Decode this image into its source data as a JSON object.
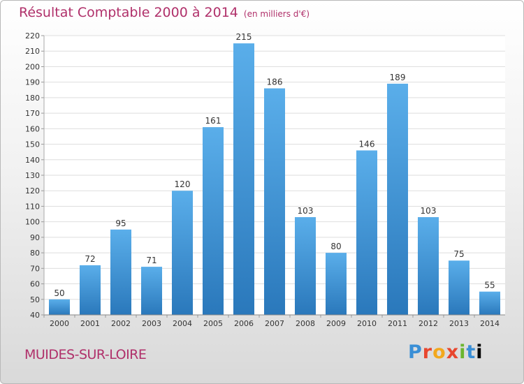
{
  "header": {
    "title": "Résultat Comptable 2000 à 2014",
    "unit": "(en milliers d'€)"
  },
  "footer": {
    "city": "MUIDES-SUR-LOIRE",
    "logo_letters": [
      "P",
      "r",
      "o",
      "x",
      "i",
      "t",
      "i"
    ]
  },
  "colors": {
    "bar_top": "#5aaeea",
    "bar_bottom": "#2a78bb",
    "title": "#b0306a",
    "grid": "#dedede"
  },
  "chart_data": {
    "type": "bar",
    "title": "Résultat Comptable 2000 à 2014",
    "xlabel": "",
    "ylabel": "",
    "categories": [
      "2000",
      "2001",
      "2002",
      "2003",
      "2004",
      "2005",
      "2006",
      "2007",
      "2008",
      "2009",
      "2010",
      "2011",
      "2012",
      "2013",
      "2014"
    ],
    "values": [
      50,
      72,
      95,
      71,
      120,
      161,
      215,
      186,
      103,
      80,
      146,
      189,
      103,
      75,
      55
    ],
    "ylim": [
      40,
      220
    ],
    "ytick_step": 10,
    "grid": true
  }
}
